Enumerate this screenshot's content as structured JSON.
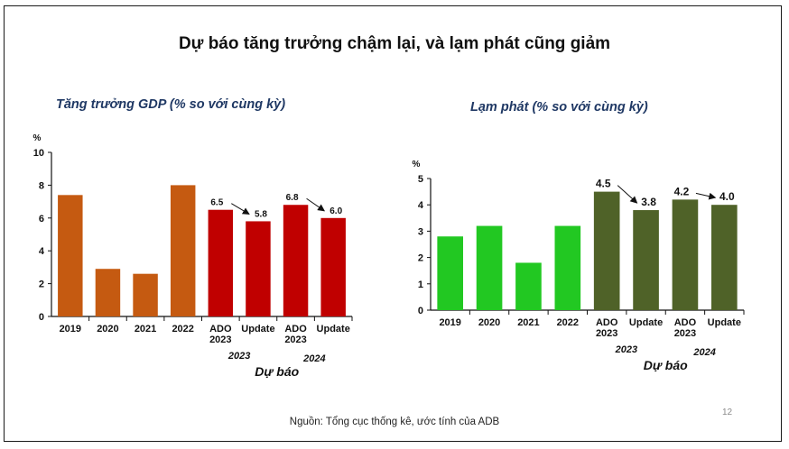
{
  "title": "Dự báo tăng trưởng chậm lại, và lạm phát cũng giảm",
  "source": "Nguồn: Tổng cục thống kê, ước tính của ADB",
  "page_number": "12",
  "chart_data": [
    {
      "type": "bar",
      "title": "Tăng trưởng GDP (% so với cùng kỳ)",
      "ylabel": "%",
      "ylim": [
        0,
        10
      ],
      "yticks": [
        "0",
        "2",
        "4",
        "6",
        "8",
        "10"
      ],
      "categories": [
        "2019",
        "2020",
        "2021",
        "2022",
        "ADO\n2023",
        "Update",
        "ADO\n2023",
        "Update"
      ],
      "values": [
        7.4,
        2.9,
        2.6,
        8.0,
        6.5,
        5.8,
        6.8,
        6.0
      ],
      "data_labels": [
        "",
        "",
        "",
        "",
        "6.5",
        "5.8",
        "6.8",
        "6.0"
      ],
      "group_labels": [
        "2023",
        "2024"
      ],
      "forecast_label": "Dự báo",
      "colors": {
        "actual": "#c55a11",
        "forecast": "#c00000"
      }
    },
    {
      "type": "bar",
      "title": "Lạm phát (% so với cùng kỳ)",
      "ylabel": "%",
      "ylim": [
        0,
        5
      ],
      "yticks": [
        "0",
        "1",
        "2",
        "3",
        "4",
        "5"
      ],
      "categories": [
        "2019",
        "2020",
        "2021",
        "2022",
        "ADO\n2023",
        "Update",
        "ADO\n2023",
        "Update"
      ],
      "values": [
        2.8,
        3.2,
        1.8,
        3.2,
        4.5,
        3.8,
        4.2,
        4.0
      ],
      "data_labels": [
        "",
        "",
        "",
        "",
        "4.5",
        "3.8",
        "4.2",
        "4.0"
      ],
      "group_labels": [
        "2023",
        "2024"
      ],
      "forecast_label": "Dự báo",
      "colors": {
        "actual": "#22c822",
        "forecast": "#4f6228"
      }
    }
  ]
}
